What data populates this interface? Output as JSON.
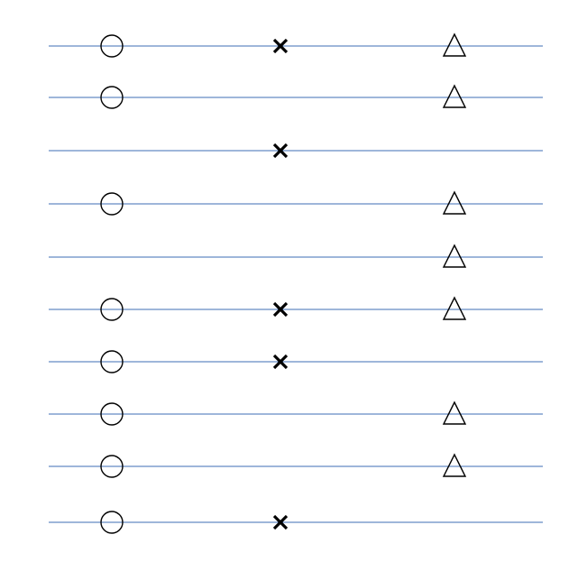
{
  "line_color": "#3d6db5",
  "marker_color": "#000000",
  "background": "#ffffff",
  "marker_types": [
    "circle-icon",
    "cross-icon",
    "triangle-icon"
  ],
  "rows": [
    {
      "circle": true,
      "cross": true,
      "triangle": true
    },
    {
      "circle": true,
      "cross": false,
      "triangle": true
    },
    {
      "circle": false,
      "cross": true,
      "triangle": false
    },
    {
      "circle": true,
      "cross": false,
      "triangle": true
    },
    {
      "circle": false,
      "cross": false,
      "triangle": true
    },
    {
      "circle": true,
      "cross": true,
      "triangle": true
    },
    {
      "circle": true,
      "cross": true,
      "triangle": false
    },
    {
      "circle": true,
      "cross": false,
      "triangle": true
    },
    {
      "circle": true,
      "cross": false,
      "triangle": true
    },
    {
      "circle": true,
      "cross": true,
      "triangle": false
    }
  ]
}
